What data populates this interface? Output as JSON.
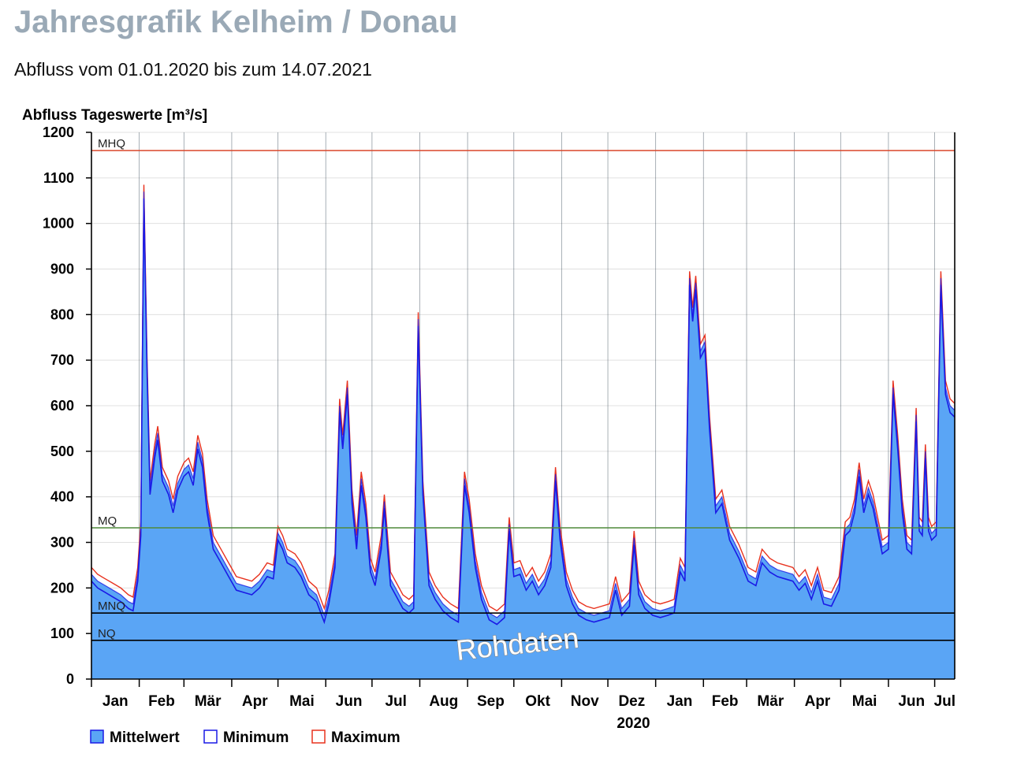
{
  "header": {
    "title": "Jahresgrafik Kelheim / Donau",
    "subtitle": "Abfluss vom 01.01.2020 bis zum 14.07.2021"
  },
  "watermark": "Rohdaten",
  "colors": {
    "mittelwert_fill": "#5aa5f5",
    "minimum_line": "#1a1ae6",
    "maximum_line": "#e8321e",
    "mhq_line": "#d9472b",
    "mq_line": "#4f8a3a",
    "mnq_line": "#000000",
    "nq_line": "#000000",
    "grid": "#e0e0e0"
  },
  "chart_data": {
    "type": "area",
    "title": "",
    "ylabel": "Abfluss Tageswerte [m³/s]",
    "xlabel": "2020",
    "ylim": [
      0,
      1200
    ],
    "yticks": [
      0,
      100,
      200,
      300,
      400,
      500,
      600,
      700,
      800,
      900,
      1000,
      1100,
      1200
    ],
    "x_range": [
      "2020-01-01",
      "2021-07-14"
    ],
    "month_ticks": [
      "Jan",
      "Feb",
      "Mär",
      "Apr",
      "Mai",
      "Jun",
      "Jul",
      "Aug",
      "Sep",
      "Okt",
      "Nov",
      "Dez",
      "Jan",
      "Feb",
      "Mär",
      "Apr",
      "Mai",
      "Jun",
      "Jul"
    ],
    "grid": true,
    "legend_position": "bottom-left",
    "reference_lines": [
      {
        "name": "MHQ",
        "value": 1160
      },
      {
        "name": "MQ",
        "value": 332
      },
      {
        "name": "MNQ",
        "value": 145
      },
      {
        "name": "NQ",
        "value": 85
      }
    ],
    "series": [
      {
        "name": "Mittelwert",
        "style": "area",
        "points": [
          [
            "2020-01-01",
            230
          ],
          [
            "2020-01-05",
            215
          ],
          [
            "2020-01-10",
            205
          ],
          [
            "2020-01-15",
            195
          ],
          [
            "2020-01-20",
            185
          ],
          [
            "2020-01-25",
            170
          ],
          [
            "2020-01-28",
            165
          ],
          [
            "2020-01-31",
            230
          ],
          [
            "2020-02-02",
            330
          ],
          [
            "2020-02-04",
            1070
          ],
          [
            "2020-02-06",
            700
          ],
          [
            "2020-02-08",
            420
          ],
          [
            "2020-02-11",
            500
          ],
          [
            "2020-02-13",
            540
          ],
          [
            "2020-02-16",
            450
          ],
          [
            "2020-02-20",
            420
          ],
          [
            "2020-02-23",
            380
          ],
          [
            "2020-02-26",
            430
          ],
          [
            "2020-03-01",
            460
          ],
          [
            "2020-03-04",
            470
          ],
          [
            "2020-03-07",
            440
          ],
          [
            "2020-03-10",
            520
          ],
          [
            "2020-03-13",
            480
          ],
          [
            "2020-03-16",
            380
          ],
          [
            "2020-03-20",
            300
          ],
          [
            "2020-03-25",
            270
          ],
          [
            "2020-03-30",
            240
          ],
          [
            "2020-04-04",
            210
          ],
          [
            "2020-04-09",
            205
          ],
          [
            "2020-04-14",
            200
          ],
          [
            "2020-04-19",
            215
          ],
          [
            "2020-04-24",
            240
          ],
          [
            "2020-04-28",
            235
          ],
          [
            "2020-05-01",
            320
          ],
          [
            "2020-05-04",
            300
          ],
          [
            "2020-05-07",
            270
          ],
          [
            "2020-05-12",
            260
          ],
          [
            "2020-05-16",
            240
          ],
          [
            "2020-05-21",
            200
          ],
          [
            "2020-05-26",
            185
          ],
          [
            "2020-05-31",
            140
          ],
          [
            "2020-06-03",
            180
          ],
          [
            "2020-06-07",
            260
          ],
          [
            "2020-06-10",
            600
          ],
          [
            "2020-06-12",
            520
          ],
          [
            "2020-06-15",
            640
          ],
          [
            "2020-06-18",
            400
          ],
          [
            "2020-06-21",
            300
          ],
          [
            "2020-06-24",
            440
          ],
          [
            "2020-06-27",
            370
          ],
          [
            "2020-06-30",
            250
          ],
          [
            "2020-07-03",
            220
          ],
          [
            "2020-07-07",
            300
          ],
          [
            "2020-07-09",
            390
          ],
          [
            "2020-07-13",
            220
          ],
          [
            "2020-07-17",
            195
          ],
          [
            "2020-07-21",
            170
          ],
          [
            "2020-07-25",
            160
          ],
          [
            "2020-07-28",
            170
          ],
          [
            "2020-07-31",
            790
          ],
          [
            "2020-08-03",
            420
          ],
          [
            "2020-08-07",
            220
          ],
          [
            "2020-08-11",
            190
          ],
          [
            "2020-08-16",
            165
          ],
          [
            "2020-08-21",
            150
          ],
          [
            "2020-08-26",
            140
          ],
          [
            "2020-08-30",
            440
          ],
          [
            "2020-09-02",
            380
          ],
          [
            "2020-09-06",
            260
          ],
          [
            "2020-09-10",
            190
          ],
          [
            "2020-09-15",
            145
          ],
          [
            "2020-09-20",
            135
          ],
          [
            "2020-09-25",
            150
          ],
          [
            "2020-09-28",
            340
          ],
          [
            "2020-10-01",
            240
          ],
          [
            "2020-10-05",
            245
          ],
          [
            "2020-10-09",
            210
          ],
          [
            "2020-10-13",
            230
          ],
          [
            "2020-10-17",
            200
          ],
          [
            "2020-10-21",
            220
          ],
          [
            "2020-10-25",
            260
          ],
          [
            "2020-10-28",
            450
          ],
          [
            "2020-10-31",
            320
          ],
          [
            "2020-11-04",
            220
          ],
          [
            "2020-11-08",
            180
          ],
          [
            "2020-11-12",
            155
          ],
          [
            "2020-11-17",
            145
          ],
          [
            "2020-11-22",
            140
          ],
          [
            "2020-11-27",
            145
          ],
          [
            "2020-12-02",
            150
          ],
          [
            "2020-12-06",
            210
          ],
          [
            "2020-12-10",
            155
          ],
          [
            "2020-12-15",
            175
          ],
          [
            "2020-12-18",
            310
          ],
          [
            "2020-12-21",
            200
          ],
          [
            "2020-12-25",
            170
          ],
          [
            "2020-12-30",
            155
          ],
          [
            "2021-01-04",
            150
          ],
          [
            "2021-01-09",
            155
          ],
          [
            "2021-01-13",
            160
          ],
          [
            "2021-01-17",
            250
          ],
          [
            "2021-01-20",
            230
          ],
          [
            "2021-01-23",
            880
          ],
          [
            "2021-01-25",
            800
          ],
          [
            "2021-01-27",
            870
          ],
          [
            "2021-01-30",
            720
          ],
          [
            "2021-02-02",
            740
          ],
          [
            "2021-02-05",
            560
          ],
          [
            "2021-02-09",
            380
          ],
          [
            "2021-02-13",
            400
          ],
          [
            "2021-02-18",
            320
          ],
          [
            "2021-02-24",
            280
          ],
          [
            "2021-03-02",
            230
          ],
          [
            "2021-03-07",
            220
          ],
          [
            "2021-03-11",
            270
          ],
          [
            "2021-03-16",
            250
          ],
          [
            "2021-03-21",
            240
          ],
          [
            "2021-03-26",
            235
          ],
          [
            "2021-03-31",
            230
          ],
          [
            "2021-04-04",
            210
          ],
          [
            "2021-04-08",
            225
          ],
          [
            "2021-04-12",
            190
          ],
          [
            "2021-04-16",
            230
          ],
          [
            "2021-04-20",
            180
          ],
          [
            "2021-04-25",
            175
          ],
          [
            "2021-04-30",
            210
          ],
          [
            "2021-05-04",
            330
          ],
          [
            "2021-05-07",
            340
          ],
          [
            "2021-05-10",
            380
          ],
          [
            "2021-05-13",
            460
          ],
          [
            "2021-05-16",
            380
          ],
          [
            "2021-05-19",
            420
          ],
          [
            "2021-05-22",
            390
          ],
          [
            "2021-05-25",
            340
          ],
          [
            "2021-05-28",
            290
          ],
          [
            "2021-06-01",
            300
          ],
          [
            "2021-06-04",
            640
          ],
          [
            "2021-06-07",
            520
          ],
          [
            "2021-06-10",
            380
          ],
          [
            "2021-06-13",
            300
          ],
          [
            "2021-06-16",
            290
          ],
          [
            "2021-06-19",
            580
          ],
          [
            "2021-06-21",
            340
          ],
          [
            "2021-06-23",
            330
          ],
          [
            "2021-06-25",
            500
          ],
          [
            "2021-06-27",
            340
          ],
          [
            "2021-06-29",
            320
          ],
          [
            "2021-07-02",
            330
          ],
          [
            "2021-07-05",
            880
          ],
          [
            "2021-07-08",
            640
          ],
          [
            "2021-07-11",
            600
          ],
          [
            "2021-07-14",
            590
          ]
        ]
      },
      {
        "name": "Minimum",
        "style": "line",
        "offset": -15
      },
      {
        "name": "Maximum",
        "style": "line",
        "offset": 15
      }
    ]
  }
}
